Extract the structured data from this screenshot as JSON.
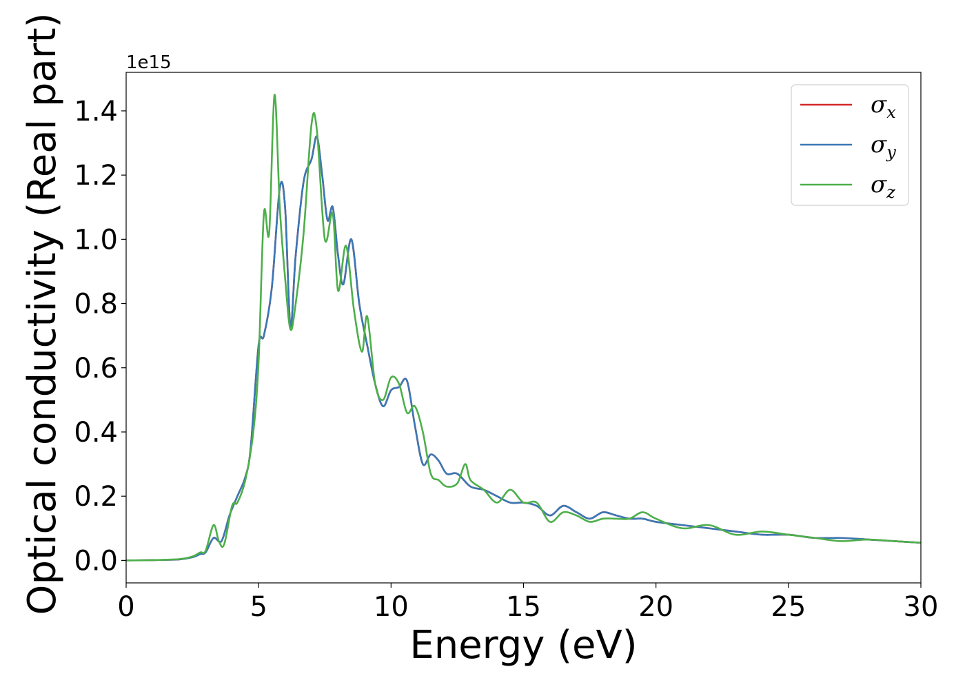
{
  "chart_data": {
    "type": "line",
    "xlabel": "Energy (eV)",
    "ylabel": "Optical conductivity (Real part)",
    "y_offset_label": "1e15",
    "xlim": [
      0,
      30
    ],
    "ylim": [
      -0.07,
      1.52
    ],
    "x_ticks": [
      0,
      5,
      10,
      15,
      20,
      25,
      30
    ],
    "x_tick_labels": [
      "0",
      "5",
      "10",
      "15",
      "20",
      "25",
      "30"
    ],
    "y_ticks": [
      0.0,
      0.2,
      0.4,
      0.6,
      0.8,
      1.0,
      1.2,
      1.4
    ],
    "y_tick_labels": [
      "0.0",
      "0.2",
      "0.4",
      "0.6",
      "0.8",
      "1.0",
      "1.2",
      "1.4"
    ],
    "grid": false,
    "legend_position": "top-right",
    "series": [
      {
        "name": "σx",
        "name_base": "σ",
        "name_sub": "x",
        "color": "#d62728",
        "points": [
          [
            0,
            0
          ],
          [
            1,
            0.001
          ],
          [
            2,
            0.003
          ],
          [
            2.5,
            0.01
          ],
          [
            2.8,
            0.02
          ],
          [
            3,
            0.025
          ],
          [
            3.3,
            0.07
          ],
          [
            3.6,
            0.06
          ],
          [
            3.9,
            0.14
          ],
          [
            4.2,
            0.2
          ],
          [
            4.5,
            0.26
          ],
          [
            4.7,
            0.35
          ],
          [
            5,
            0.67
          ],
          [
            5.2,
            0.7
          ],
          [
            5.5,
            0.85
          ],
          [
            5.8,
            1.16
          ],
          [
            6,
            1.1
          ],
          [
            6.2,
            0.73
          ],
          [
            6.4,
            0.95
          ],
          [
            6.7,
            1.18
          ],
          [
            7,
            1.25
          ],
          [
            7.2,
            1.32
          ],
          [
            7.4,
            1.2
          ],
          [
            7.6,
            1.06
          ],
          [
            7.8,
            1.1
          ],
          [
            8,
            0.95
          ],
          [
            8.2,
            0.86
          ],
          [
            8.5,
            1.0
          ],
          [
            8.8,
            0.8
          ],
          [
            9.1,
            0.67
          ],
          [
            9.4,
            0.55
          ],
          [
            9.7,
            0.48
          ],
          [
            10,
            0.53
          ],
          [
            10.3,
            0.54
          ],
          [
            10.6,
            0.56
          ],
          [
            10.9,
            0.42
          ],
          [
            11.2,
            0.3
          ],
          [
            11.5,
            0.33
          ],
          [
            11.8,
            0.31
          ],
          [
            12.1,
            0.27
          ],
          [
            12.5,
            0.27
          ],
          [
            13,
            0.23
          ],
          [
            13.5,
            0.22
          ],
          [
            14,
            0.2
          ],
          [
            14.5,
            0.18
          ],
          [
            15,
            0.18
          ],
          [
            15.5,
            0.17
          ],
          [
            16,
            0.14
          ],
          [
            16.5,
            0.17
          ],
          [
            17,
            0.15
          ],
          [
            17.5,
            0.13
          ],
          [
            18,
            0.15
          ],
          [
            18.5,
            0.14
          ],
          [
            19,
            0.13
          ],
          [
            19.5,
            0.13
          ],
          [
            20,
            0.12
          ],
          [
            21,
            0.11
          ],
          [
            22,
            0.1
          ],
          [
            23,
            0.09
          ],
          [
            24,
            0.08
          ],
          [
            25,
            0.08
          ],
          [
            26,
            0.07
          ],
          [
            27,
            0.07
          ],
          [
            28,
            0.065
          ],
          [
            29,
            0.06
          ],
          [
            30,
            0.055
          ]
        ]
      },
      {
        "name": "σy",
        "name_base": "σ",
        "name_sub": "y",
        "color": "#3a78b5",
        "points": [
          [
            0,
            0
          ],
          [
            1,
            0.001
          ],
          [
            2,
            0.003
          ],
          [
            2.5,
            0.01
          ],
          [
            2.8,
            0.02
          ],
          [
            3,
            0.025
          ],
          [
            3.3,
            0.07
          ],
          [
            3.6,
            0.06
          ],
          [
            3.9,
            0.14
          ],
          [
            4.2,
            0.2
          ],
          [
            4.5,
            0.26
          ],
          [
            4.7,
            0.35
          ],
          [
            5,
            0.67
          ],
          [
            5.2,
            0.7
          ],
          [
            5.5,
            0.85
          ],
          [
            5.8,
            1.16
          ],
          [
            6,
            1.1
          ],
          [
            6.2,
            0.73
          ],
          [
            6.4,
            0.95
          ],
          [
            6.7,
            1.18
          ],
          [
            7,
            1.25
          ],
          [
            7.2,
            1.32
          ],
          [
            7.4,
            1.2
          ],
          [
            7.6,
            1.06
          ],
          [
            7.8,
            1.1
          ],
          [
            8,
            0.95
          ],
          [
            8.2,
            0.86
          ],
          [
            8.5,
            1.0
          ],
          [
            8.8,
            0.8
          ],
          [
            9.1,
            0.67
          ],
          [
            9.4,
            0.55
          ],
          [
            9.7,
            0.48
          ],
          [
            10,
            0.53
          ],
          [
            10.3,
            0.54
          ],
          [
            10.6,
            0.56
          ],
          [
            10.9,
            0.42
          ],
          [
            11.2,
            0.3
          ],
          [
            11.5,
            0.33
          ],
          [
            11.8,
            0.31
          ],
          [
            12.1,
            0.27
          ],
          [
            12.5,
            0.27
          ],
          [
            13,
            0.23
          ],
          [
            13.5,
            0.22
          ],
          [
            14,
            0.2
          ],
          [
            14.5,
            0.18
          ],
          [
            15,
            0.18
          ],
          [
            15.5,
            0.17
          ],
          [
            16,
            0.14
          ],
          [
            16.5,
            0.17
          ],
          [
            17,
            0.15
          ],
          [
            17.5,
            0.13
          ],
          [
            18,
            0.15
          ],
          [
            18.5,
            0.14
          ],
          [
            19,
            0.13
          ],
          [
            19.5,
            0.13
          ],
          [
            20,
            0.12
          ],
          [
            21,
            0.11
          ],
          [
            22,
            0.1
          ],
          [
            23,
            0.09
          ],
          [
            24,
            0.08
          ],
          [
            25,
            0.08
          ],
          [
            26,
            0.07
          ],
          [
            27,
            0.07
          ],
          [
            28,
            0.065
          ],
          [
            29,
            0.06
          ],
          [
            30,
            0.055
          ]
        ]
      },
      {
        "name": "σz",
        "name_base": "σ",
        "name_sub": "z",
        "color": "#4daf4a",
        "points": [
          [
            0,
            0
          ],
          [
            1,
            0.001
          ],
          [
            2,
            0.004
          ],
          [
            2.5,
            0.012
          ],
          [
            2.8,
            0.025
          ],
          [
            3,
            0.03
          ],
          [
            3.3,
            0.11
          ],
          [
            3.5,
            0.06
          ],
          [
            3.7,
            0.05
          ],
          [
            4,
            0.17
          ],
          [
            4.2,
            0.18
          ],
          [
            4.5,
            0.25
          ],
          [
            4.8,
            0.4
          ],
          [
            5,
            0.62
          ],
          [
            5.2,
            1.08
          ],
          [
            5.4,
            1.02
          ],
          [
            5.6,
            1.45
          ],
          [
            5.8,
            1.1
          ],
          [
            6,
            0.88
          ],
          [
            6.2,
            0.72
          ],
          [
            6.4,
            0.8
          ],
          [
            6.7,
            1.02
          ],
          [
            7,
            1.36
          ],
          [
            7.2,
            1.34
          ],
          [
            7.5,
            1.0
          ],
          [
            7.8,
            1.08
          ],
          [
            8,
            0.84
          ],
          [
            8.3,
            0.98
          ],
          [
            8.6,
            0.78
          ],
          [
            8.9,
            0.65
          ],
          [
            9.1,
            0.76
          ],
          [
            9.4,
            0.55
          ],
          [
            9.7,
            0.5
          ],
          [
            10,
            0.57
          ],
          [
            10.3,
            0.55
          ],
          [
            10.6,
            0.46
          ],
          [
            10.9,
            0.48
          ],
          [
            11.2,
            0.4
          ],
          [
            11.5,
            0.27
          ],
          [
            11.8,
            0.25
          ],
          [
            12.1,
            0.23
          ],
          [
            12.5,
            0.24
          ],
          [
            12.8,
            0.3
          ],
          [
            13,
            0.25
          ],
          [
            13.5,
            0.22
          ],
          [
            14,
            0.18
          ],
          [
            14.5,
            0.22
          ],
          [
            15,
            0.18
          ],
          [
            15.5,
            0.18
          ],
          [
            16,
            0.12
          ],
          [
            16.5,
            0.15
          ],
          [
            17,
            0.14
          ],
          [
            17.5,
            0.12
          ],
          [
            18,
            0.13
          ],
          [
            18.5,
            0.13
          ],
          [
            19,
            0.13
          ],
          [
            19.5,
            0.15
          ],
          [
            20,
            0.13
          ],
          [
            21,
            0.1
          ],
          [
            22,
            0.11
          ],
          [
            23,
            0.08
          ],
          [
            24,
            0.09
          ],
          [
            25,
            0.08
          ],
          [
            26,
            0.07
          ],
          [
            27,
            0.06
          ],
          [
            28,
            0.065
          ],
          [
            29,
            0.06
          ],
          [
            30,
            0.055
          ]
        ]
      }
    ]
  }
}
